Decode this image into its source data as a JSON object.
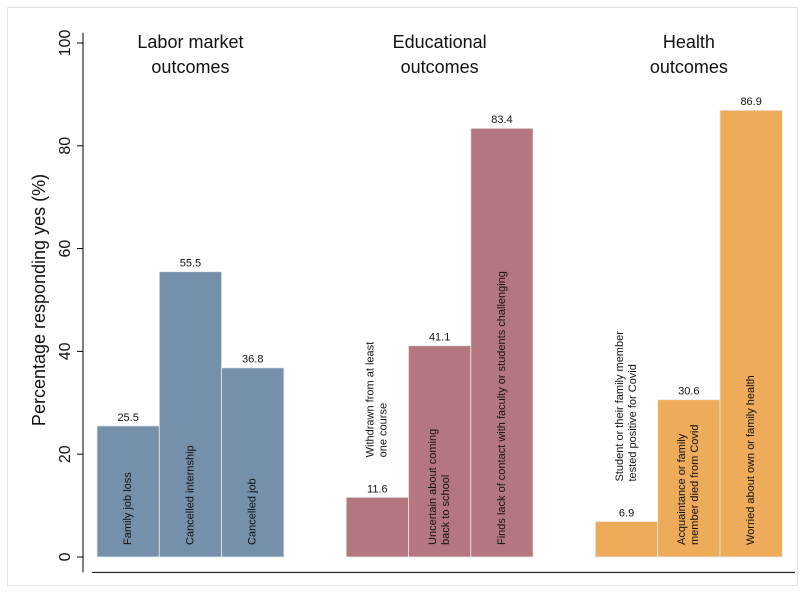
{
  "chart_data": {
    "type": "bar",
    "y_label": "Percentage responding yes (%)",
    "ylim": [
      -3,
      102
    ],
    "yticks": [
      0,
      20,
      40,
      60,
      80,
      100
    ],
    "groups": [
      {
        "title": [
          "Labor market",
          "outcomes"
        ],
        "color": "#7590aa",
        "categories": [
          [
            "Family job loss"
          ],
          [
            "Cancelled internship"
          ],
          [
            "Cancelled job"
          ]
        ],
        "values": [
          25.5,
          55.5,
          36.8
        ]
      },
      {
        "title": [
          "Educational",
          "outcomes"
        ],
        "color": "#b5777f",
        "categories": [
          [
            "Withdrawn from at least",
            "one course"
          ],
          [
            "Uncertain about coming",
            "back to school"
          ],
          [
            "Finds lack of contact with faculty or students challenging"
          ]
        ],
        "values": [
          11.6,
          41.1,
          83.4
        ]
      },
      {
        "title": [
          "Health",
          "outcomes"
        ],
        "color": "#eeab59",
        "categories": [
          [
            "Student or their family member",
            "tested positive for Covid"
          ],
          [
            "Acquaintance or family",
            "member died from Covid"
          ],
          [
            "Worried about own or family health"
          ]
        ],
        "values": [
          6.9,
          30.6,
          86.9
        ]
      }
    ]
  }
}
